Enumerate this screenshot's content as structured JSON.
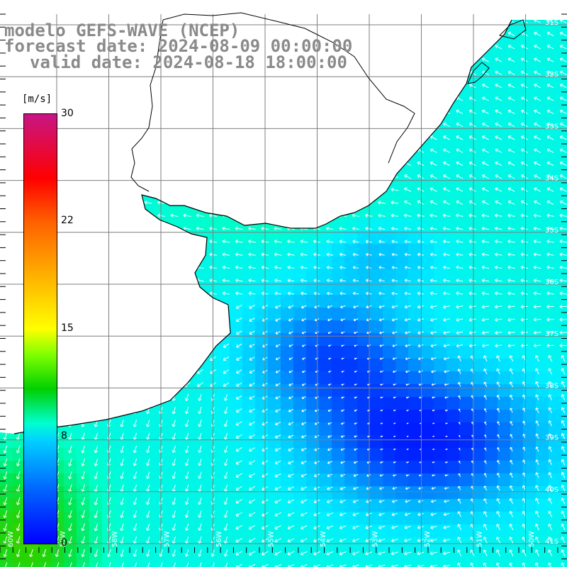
{
  "title": {
    "line1": "modelo GEFS-WAVE (NCEP)",
    "line2": "forecast date: 2024-08-09 00:00:00",
    "line3": "valid date: 2024-08-18 18:00:00"
  },
  "colorbar": {
    "unit": "[m/s]",
    "ticks": [
      "30",
      "22",
      "15",
      "8",
      "0"
    ],
    "tick_values": [
      30,
      22,
      15,
      8,
      0
    ],
    "colors": [
      "#c71585",
      "#ff0000",
      "#ff6000",
      "#ffff00",
      "#00d000",
      "#00ffd0",
      "#00d0ff",
      "#0060ff",
      "#0000ff"
    ]
  },
  "lat_labels": [
    "31S",
    "32S",
    "33S",
    "34S",
    "35S",
    "36S",
    "37S",
    "38S",
    "39S",
    "40S",
    "41S"
  ],
  "lon_labels": [
    "60W",
    "59W",
    "58W",
    "57W",
    "56W",
    "55W",
    "54W",
    "53W",
    "52W",
    "51W",
    "50W"
  ],
  "colors": {
    "land": "#ffffff",
    "coast": "#000000",
    "grid": "#7f7f7f",
    "arrow": "#ffffff",
    "title": "#8a8a8a"
  }
}
